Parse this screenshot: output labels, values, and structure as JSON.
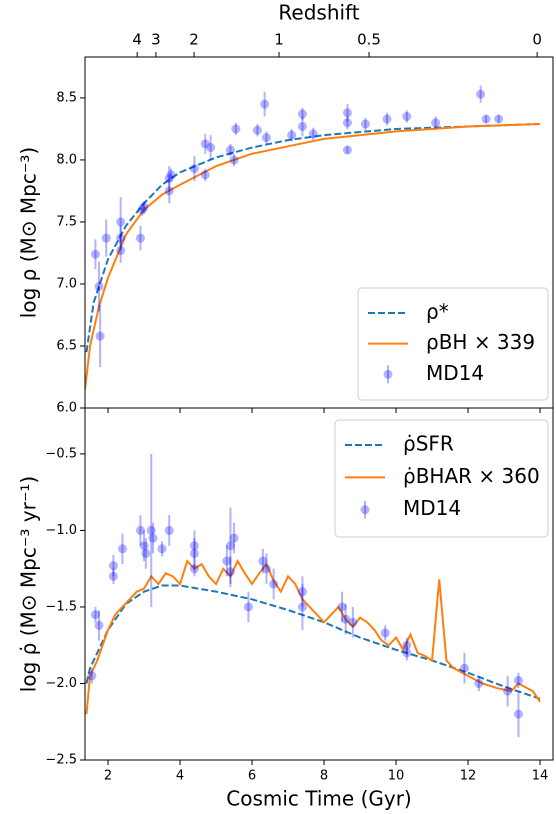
{
  "chart_data": [
    {
      "type": "line",
      "top_axis_label": "Redshift",
      "top_ticks": [
        {
          "value": 2.81,
          "label": "4"
        },
        {
          "value": 3.33,
          "label": "3"
        },
        {
          "value": 4.39,
          "label": "2"
        },
        {
          "value": 6.75,
          "label": "1"
        },
        {
          "value": 9.25,
          "label": "0.5"
        },
        {
          "value": 13.92,
          "label": "0"
        }
      ],
      "ylabel": "log ρ (M⊙ Mpc⁻³)",
      "xlim": [
        1.36,
        14.36
      ],
      "xticks": [
        2,
        4,
        6,
        8,
        10,
        12,
        14
      ],
      "ylim": [
        6.0,
        8.83
      ],
      "yticks": [
        {
          "value": 6,
          "label": "6.0"
        },
        6.5,
        {
          "value": 7,
          "label": "7.0"
        },
        7.5,
        {
          "value": 8,
          "label": "8.0"
        },
        8.5
      ],
      "legend": "lower right",
      "series": [
        {
          "name": "ρ*",
          "color": "#1f77b4",
          "style": "dashed",
          "x": [
            1.4,
            1.6,
            2,
            2.5,
            3,
            3.5,
            4,
            5,
            6,
            7,
            8,
            10,
            12,
            14
          ],
          "values": [
            6.45,
            6.85,
            7.2,
            7.47,
            7.65,
            7.8,
            7.9,
            8.02,
            8.1,
            8.16,
            8.2,
            8.25,
            8.27,
            8.29
          ]
        },
        {
          "name": "ρBH × 339",
          "color": "#ff7f0e",
          "style": "solid",
          "x": [
            1.36,
            1.5,
            1.75,
            2,
            2.5,
            3,
            3.5,
            4,
            5,
            6,
            7,
            8,
            10,
            12,
            14
          ],
          "values": [
            6.15,
            6.5,
            6.82,
            7.05,
            7.4,
            7.6,
            7.72,
            7.8,
            7.95,
            8.05,
            8.11,
            8.17,
            8.23,
            8.27,
            8.29
          ]
        },
        {
          "name": "MD14",
          "color": "#0000ff",
          "style": "errorbar",
          "x": [
            1.65,
            1.75,
            1.78,
            1.95,
            2.35,
            2.35,
            2.35,
            2.9,
            2.95,
            3.0,
            3.7,
            3.7,
            3.75,
            4.4,
            4.7,
            4.7,
            4.85,
            5.4,
            5.5,
            5.55,
            6.15,
            6.35,
            6.4,
            7.1,
            7.4,
            7.4,
            7.7,
            8.65,
            8.65,
            8.65,
            9.15,
            9.75,
            10.3,
            11.1,
            12.35,
            12.5,
            12.85
          ],
          "values": [
            7.24,
            6.98,
            6.58,
            7.37,
            7.5,
            7.37,
            7.27,
            7.37,
            7.6,
            7.62,
            7.75,
            7.85,
            7.88,
            7.93,
            8.13,
            7.88,
            8.1,
            8.08,
            8.0,
            8.25,
            8.24,
            8.45,
            8.18,
            8.2,
            8.37,
            8.27,
            8.21,
            8.08,
            8.38,
            8.3,
            8.29,
            8.33,
            8.35,
            8.3,
            8.53,
            8.33,
            8.33
          ],
          "errors": [
            0.12,
            0.2,
            0.25,
            0.15,
            0.2,
            0.1,
            0.1,
            0.1,
            0.05,
            0.05,
            0.1,
            0.1,
            0.05,
            0.1,
            0.08,
            0.05,
            0.1,
            0.05,
            0.05,
            0.05,
            0.05,
            0.1,
            0.05,
            0.05,
            0.05,
            0.08,
            0.05,
            0.03,
            0.07,
            0.05,
            0.05,
            0.05,
            0.05,
            0.05,
            0.07,
            0.03,
            0.03
          ]
        }
      ]
    },
    {
      "type": "line",
      "xlabel": "Cosmic Time (Gyr)",
      "ylabel": "log ρ̇ (M⊙ Mpc⁻³ yr⁻¹)",
      "xlim": [
        1.36,
        14.36
      ],
      "xticks": [
        2,
        4,
        6,
        8,
        10,
        12,
        14
      ],
      "ylim": [
        -2.5,
        -0.2
      ],
      "yticks": [
        {
          "value": -2.5,
          "label": "−2.5"
        },
        {
          "value": -2,
          "label": "−2.0"
        },
        {
          "value": -1.5,
          "label": "−1.5"
        },
        {
          "value": -1,
          "label": "−1.0"
        },
        {
          "value": -0.5,
          "label": "−0.5"
        }
      ],
      "legend": "upper right",
      "series": [
        {
          "name": "ρ̇SFR",
          "color": "#1f77b4",
          "style": "dashed",
          "x": [
            1.4,
            1.5,
            2,
            2.5,
            3,
            3.5,
            4,
            5,
            6,
            7,
            8,
            9,
            10,
            11,
            12,
            13,
            14
          ],
          "values": [
            -2.0,
            -1.9,
            -1.65,
            -1.48,
            -1.4,
            -1.36,
            -1.36,
            -1.4,
            -1.45,
            -1.52,
            -1.6,
            -1.7,
            -1.78,
            -1.85,
            -1.93,
            -2.02,
            -2.1
          ]
        },
        {
          "name": "ρ̇BHAR × 360",
          "color": "#ff7f0e",
          "style": "solid",
          "x": [
            1.4,
            1.5,
            1.7,
            2.0,
            2.2,
            2.4,
            2.6,
            2.8,
            3.0,
            3.2,
            3.4,
            3.6,
            3.8,
            4.0,
            4.2,
            4.4,
            4.6,
            4.8,
            5.0,
            5.2,
            5.4,
            5.6,
            5.8,
            6.0,
            6.2,
            6.4,
            6.6,
            6.8,
            7.0,
            7.2,
            7.4,
            7.6,
            7.8,
            8.0,
            8.2,
            8.4,
            8.6,
            8.8,
            9.0,
            9.2,
            9.4,
            9.6,
            9.8,
            10.0,
            10.2,
            10.4,
            10.6,
            10.8,
            11.0,
            11.2,
            11.4,
            11.6,
            12.0,
            12.4,
            12.8,
            13.2,
            13.4,
            13.8,
            14.0
          ],
          "values": [
            -2.2,
            -1.95,
            -1.85,
            -1.65,
            -1.55,
            -1.5,
            -1.45,
            -1.4,
            -1.38,
            -1.3,
            -1.35,
            -1.28,
            -1.3,
            -1.35,
            -1.2,
            -1.25,
            -1.22,
            -1.3,
            -1.35,
            -1.25,
            -1.3,
            -1.2,
            -1.28,
            -1.35,
            -1.28,
            -1.22,
            -1.33,
            -1.4,
            -1.3,
            -1.35,
            -1.45,
            -1.5,
            -1.55,
            -1.6,
            -1.55,
            -1.5,
            -1.58,
            -1.63,
            -1.57,
            -1.6,
            -1.65,
            -1.72,
            -1.75,
            -1.7,
            -1.78,
            -1.68,
            -1.8,
            -1.82,
            -1.85,
            -1.32,
            -1.85,
            -1.9,
            -1.95,
            -2.0,
            -2.03,
            -2.05,
            -2.0,
            -2.05,
            -2.12
          ]
        },
        {
          "name": "MD14",
          "color": "#0000ff",
          "style": "errorbar",
          "x": [
            1.55,
            1.65,
            1.75,
            2.15,
            2.15,
            2.4,
            2.9,
            3.0,
            3.05,
            3.2,
            3.25,
            3.5,
            3.7,
            4.4,
            4.4,
            4.4,
            5.3,
            5.4,
            5.4,
            5.5,
            5.9,
            6.3,
            6.4,
            6.6,
            7.4,
            7.4,
            8.5,
            8.6,
            8.8,
            9.7,
            10.3,
            10.3,
            11.9,
            12.3,
            13.1,
            13.4,
            13.4
          ],
          "values": [
            -1.95,
            -1.55,
            -1.62,
            -1.23,
            -1.3,
            -1.12,
            -1.0,
            -1.1,
            -1.15,
            -1.0,
            -1.05,
            -1.12,
            -1.0,
            -1.1,
            -1.15,
            -1.25,
            -1.2,
            -1.1,
            -1.27,
            -1.05,
            -1.5,
            -1.2,
            -1.25,
            -1.35,
            -1.4,
            -1.5,
            -1.5,
            -1.58,
            -1.6,
            -1.67,
            -1.75,
            -1.8,
            -1.9,
            -2.0,
            -2.05,
            -2.2,
            -1.98
          ],
          "errors": [
            0.05,
            0.05,
            0.1,
            0.07,
            0.05,
            0.1,
            0.1,
            0.1,
            0.1,
            0.5,
            0.1,
            0.05,
            0.1,
            0.1,
            0.1,
            0.05,
            0.1,
            0.25,
            0.1,
            0.1,
            0.1,
            0.08,
            0.1,
            0.1,
            0.1,
            0.15,
            0.1,
            0.1,
            0.1,
            0.05,
            0.05,
            0.05,
            0.1,
            0.05,
            0.1,
            0.15,
            0.05
          ]
        }
      ]
    }
  ]
}
